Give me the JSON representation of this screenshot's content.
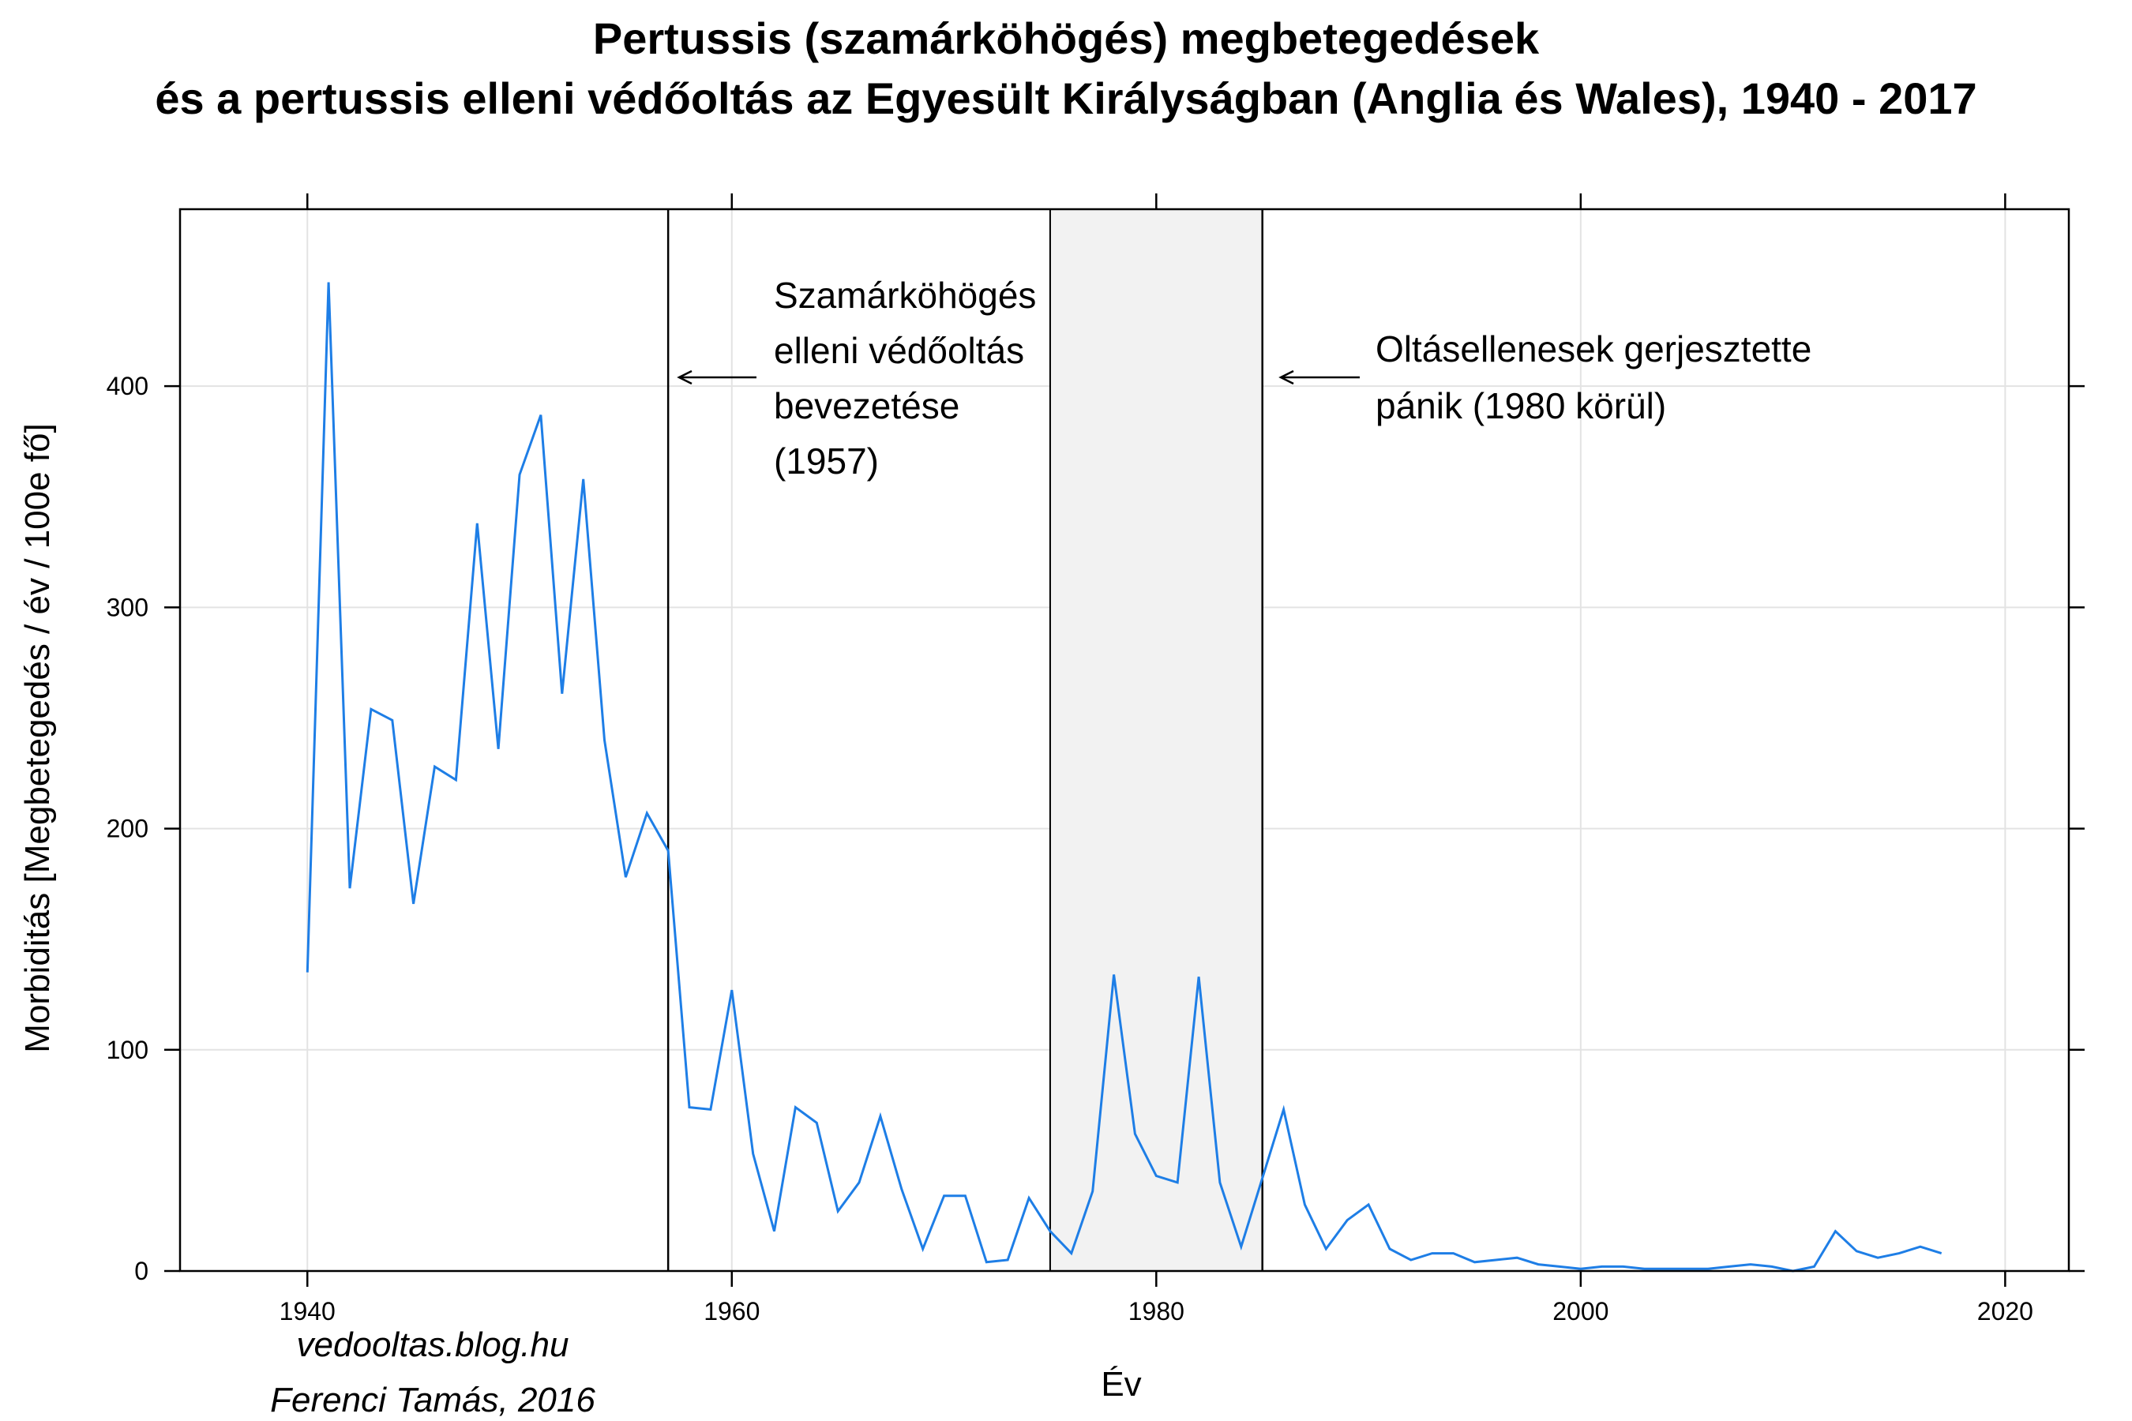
{
  "colors": {
    "line": "#1e7ee6",
    "grid": "#e3e3e3",
    "shade": "#f2f2f2",
    "frame": "#000000"
  },
  "credits": {
    "blog": "vedooltas.blog.hu",
    "author": "Ferenci Tamás, 2016"
  },
  "chart_data": {
    "type": "line",
    "title_lines": [
      "Pertussis (szamárköhögés) megbetegedések",
      "és a pertussis elleni védőoltás az Egyesült Királyságban (Anglia és Wales), 1940 - 2017"
    ],
    "xlabel": "Év",
    "ylabel": "Morbiditás [Megbetegedés / év / 100e fő]",
    "xlim": [
      1934,
      2023
    ],
    "ylim": [
      0,
      480
    ],
    "xticks": [
      1940,
      1960,
      1980,
      2000,
      2020
    ],
    "yticks": [
      0,
      100,
      200,
      300,
      400
    ],
    "grid": true,
    "series": [
      {
        "x": [
          1940,
          1941,
          1942,
          1943,
          1944,
          1945,
          1946,
          1947,
          1948,
          1949,
          1950,
          1951,
          1952,
          1953,
          1954,
          1955,
          1956,
          1957,
          1958,
          1959,
          1960,
          1961,
          1962,
          1963,
          1964,
          1965,
          1966,
          1967,
          1968,
          1969,
          1970,
          1971,
          1972,
          1973,
          1974,
          1975,
          1976,
          1977,
          1978,
          1979,
          1980,
          1981,
          1982,
          1983,
          1984,
          1985,
          1986,
          1987,
          1988,
          1989,
          1990,
          1991,
          1992,
          1993,
          1994,
          1995,
          1996,
          1997,
          1998,
          1999,
          2000,
          2001,
          2002,
          2003,
          2004,
          2005,
          2006,
          2007,
          2008,
          2009,
          2010,
          2011,
          2012,
          2013,
          2014,
          2015,
          2016,
          2017
        ],
        "values": [
          135,
          447,
          173,
          254,
          249,
          166,
          228,
          222,
          338,
          236,
          360,
          387,
          261,
          358,
          240,
          178,
          207,
          190,
          74,
          73,
          127,
          53,
          18,
          74,
          67,
          27,
          40,
          70,
          37,
          10,
          34,
          34,
          4,
          5,
          33,
          18,
          8,
          36,
          134,
          62,
          43,
          40,
          133,
          40,
          11,
          42,
          73,
          30,
          10,
          23,
          30,
          10,
          5,
          8,
          8,
          4,
          5,
          6,
          3,
          2,
          1,
          2,
          2,
          1,
          1,
          1,
          1,
          2,
          3,
          2,
          0,
          2,
          18,
          9,
          6,
          8,
          11,
          8
        ]
      }
    ],
    "annotations": [
      {
        "x": 1957,
        "type": "vline",
        "label_lines": [
          "Szamárköhögés",
          "elleni védőoltás",
          "bevezetése",
          "(1957)"
        ]
      },
      {
        "x": 1985,
        "type": "vline",
        "label_lines": [
          "Oltásellenesek gerjesztette",
          "pánik (1980 körül)"
        ]
      },
      {
        "type": "shaded_region",
        "x_range": [
          1975,
          1985
        ]
      }
    ]
  }
}
